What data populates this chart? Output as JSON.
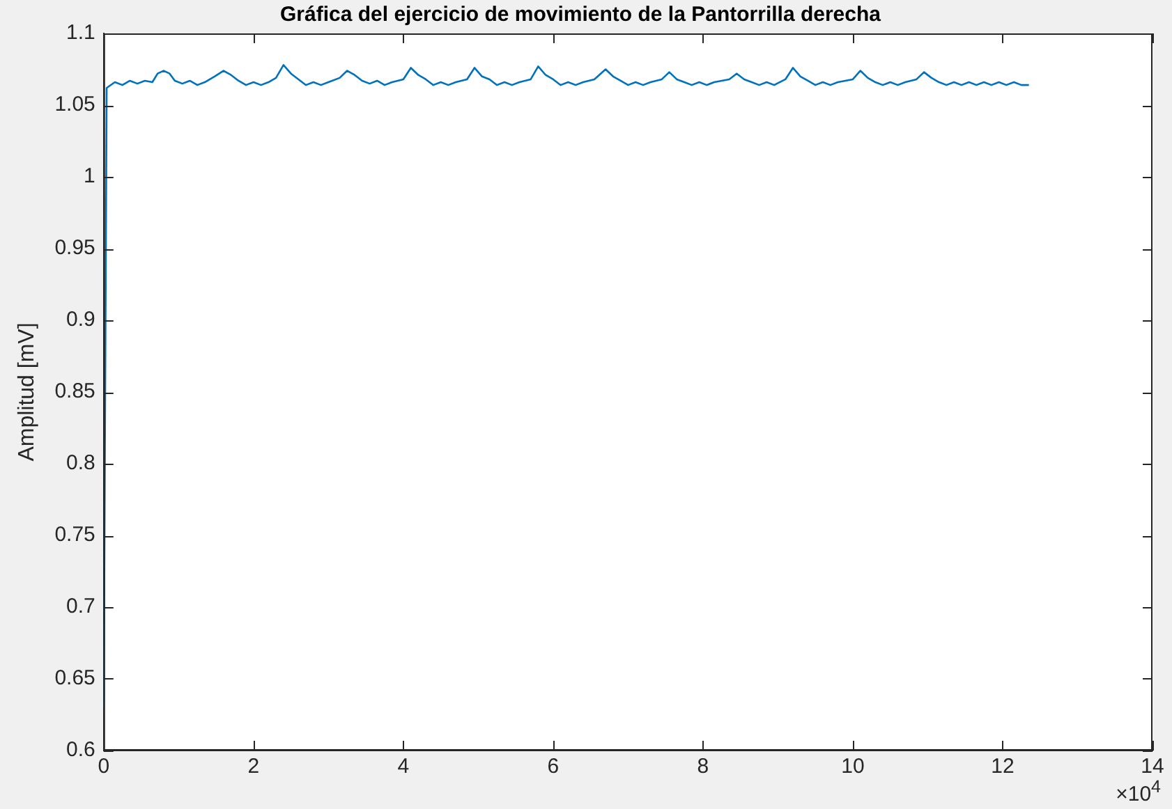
{
  "chart_data": {
    "type": "line",
    "title": "Gráfica del ejercicio de movimiento de la Pantorrilla derecha",
    "ylabel": "Amplitud [mV]",
    "annotations": [
      "×10$^{4}$"
    ],
    "x": [
      0,
      0.04,
      0.15,
      0.25,
      0.35,
      0.45,
      0.55,
      0.65,
      0.72,
      0.8,
      0.88,
      0.95,
      1.05,
      1.15,
      1.25,
      1.35,
      1.48,
      1.6,
      1.7,
      1.8,
      1.9,
      2,
      2.1,
      2.2,
      2.3,
      2.4,
      2.5,
      2.6,
      2.7,
      2.8,
      2.9,
      3,
      3.15,
      3.25,
      3.35,
      3.45,
      3.55,
      3.65,
      3.75,
      3.85,
      4,
      4.1,
      4.2,
      4.3,
      4.4,
      4.5,
      4.6,
      4.7,
      4.85,
      4.95,
      5.05,
      5.15,
      5.25,
      5.35,
      5.45,
      5.55,
      5.7,
      5.8,
      5.9,
      6,
      6.1,
      6.2,
      6.3,
      6.4,
      6.55,
      6.7,
      6.8,
      6.9,
      7,
      7.1,
      7.2,
      7.3,
      7.45,
      7.55,
      7.65,
      7.75,
      7.85,
      7.95,
      8.05,
      8.15,
      8.35,
      8.45,
      8.55,
      8.65,
      8.75,
      8.85,
      8.95,
      9.1,
      9.2,
      9.3,
      9.4,
      9.5,
      9.6,
      9.7,
      9.8,
      10,
      10.1,
      10.2,
      10.3,
      10.4,
      10.5,
      10.6,
      10.7,
      10.85,
      10.95,
      11.05,
      11.15,
      11.25,
      11.35,
      11.45,
      11.55,
      11.65,
      11.75,
      11.85,
      11.95,
      12.05,
      12.15,
      12.25,
      12.35
    ],
    "series": [
      {
        "color": "#0072bd",
        "values": [
          0.63,
          1.062,
          1.066,
          1.064,
          1.067,
          1.065,
          1.067,
          1.066,
          1.072,
          1.074,
          1.072,
          1.067,
          1.065,
          1.067,
          1.064,
          1.066,
          1.07,
          1.074,
          1.071,
          1.067,
          1.064,
          1.066,
          1.064,
          1.066,
          1.069,
          1.078,
          1.072,
          1.068,
          1.064,
          1.066,
          1.064,
          1.066,
          1.069,
          1.074,
          1.071,
          1.067,
          1.065,
          1.067,
          1.064,
          1.066,
          1.068,
          1.076,
          1.071,
          1.068,
          1.064,
          1.066,
          1.064,
          1.066,
          1.068,
          1.076,
          1.07,
          1.068,
          1.064,
          1.066,
          1.064,
          1.066,
          1.068,
          1.077,
          1.071,
          1.068,
          1.064,
          1.066,
          1.064,
          1.066,
          1.068,
          1.075,
          1.07,
          1.067,
          1.064,
          1.066,
          1.064,
          1.066,
          1.068,
          1.073,
          1.068,
          1.066,
          1.064,
          1.066,
          1.064,
          1.066,
          1.068,
          1.072,
          1.068,
          1.066,
          1.064,
          1.066,
          1.064,
          1.068,
          1.076,
          1.07,
          1.067,
          1.064,
          1.066,
          1.064,
          1.066,
          1.068,
          1.074,
          1.069,
          1.066,
          1.064,
          1.066,
          1.064,
          1.066,
          1.068,
          1.073,
          1.069,
          1.066,
          1.064,
          1.066,
          1.064,
          1.066,
          1.064,
          1.066,
          1.064,
          1.066,
          1.064,
          1.066,
          1.064,
          1.064
        ]
      }
    ],
    "xlim": [
      0,
      14
    ],
    "xticks": [
      0,
      2,
      4,
      6,
      8,
      10,
      12,
      14
    ],
    "ylim": [
      0.6,
      1.1
    ],
    "yticks": [
      0.6,
      0.65,
      0.7,
      0.75,
      0.8,
      0.85,
      0.9,
      0.95,
      1,
      1.05,
      1.1
    ],
    "grid": false,
    "legend": false,
    "marker": "none",
    "line_style": "solid"
  }
}
